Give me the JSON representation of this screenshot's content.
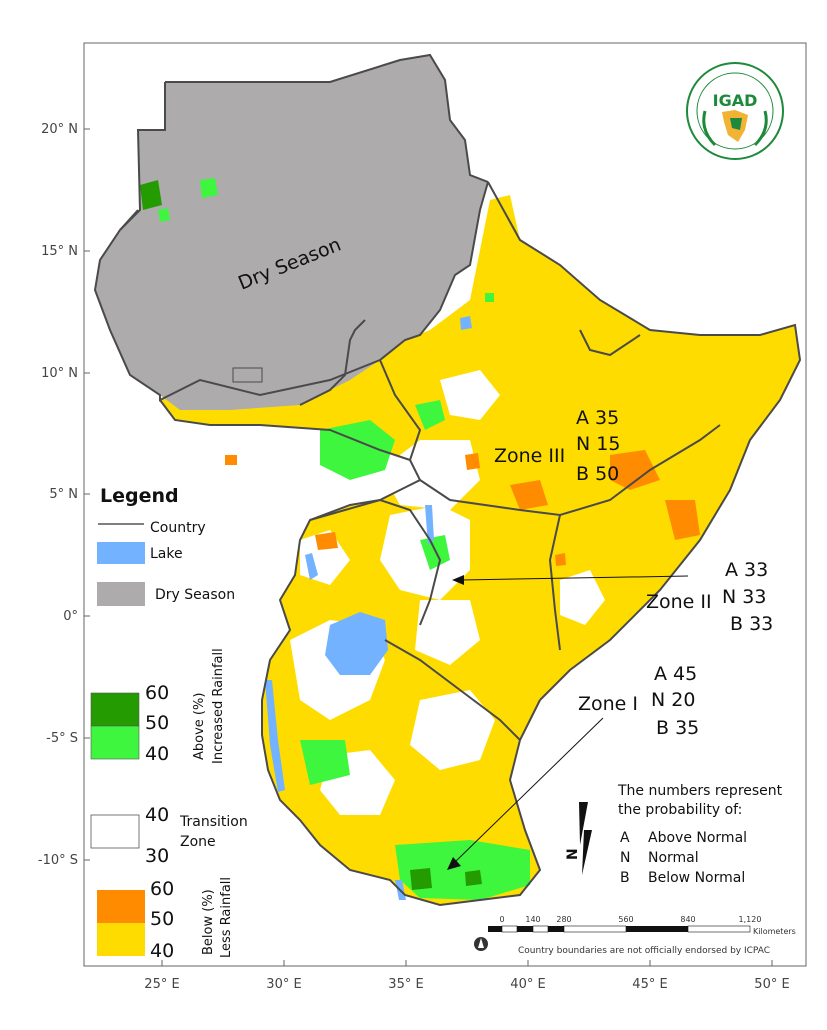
{
  "axes": {
    "lat_labels": [
      "20° N",
      "15° N",
      "10° N",
      "5° N",
      "0°",
      "-5° S",
      "-10° S"
    ],
    "lon_labels": [
      "25° E",
      "30° E",
      "35° E",
      "40° E",
      "45° E",
      "50° E"
    ]
  },
  "colors": {
    "dry_season": "#aeabad",
    "lake": "#73b2ff",
    "above_60": "#249b00",
    "above_40": "#3ff63f",
    "below_60": "#ff8b00",
    "below_40": "#ffdc00",
    "transition": "#ffffff",
    "border": "#4a4a4a"
  },
  "map_labels": {
    "dry_season": "Dry Season"
  },
  "zones": [
    {
      "name": "Zone III",
      "A": "A 35",
      "N": "N 15",
      "B": "B 50"
    },
    {
      "name": "Zone II",
      "A": "A 33",
      "N": "N 33",
      "B": "B 33"
    },
    {
      "name": "Zone I",
      "A": "A 45",
      "N": "N 20",
      "B": "B 35"
    }
  ],
  "legend": {
    "title": "Legend",
    "country": "Country",
    "lake": "Lake",
    "dry_season": "Dry Season",
    "above_label_1": "Above (%)",
    "above_label_2": "Increased Rainfall",
    "above_values": [
      "60",
      "50",
      "40"
    ],
    "transition_label_1": "Transition",
    "transition_label_2": "Zone",
    "transition_values": [
      "40",
      "30"
    ],
    "below_label_1": "Below (%)",
    "below_label_2": "Less Rainfall",
    "below_values": [
      "60",
      "50",
      "40"
    ]
  },
  "notes": {
    "line1": "The numbers represent",
    "line2": "the probability of:",
    "items": [
      {
        "key": "A",
        "text": "Above Normal"
      },
      {
        "key": "N",
        "text": "Normal"
      },
      {
        "key": "B",
        "text": "Below Normal"
      }
    ]
  },
  "scale_bar": {
    "ticks": [
      "0",
      "140",
      "280",
      "560",
      "840",
      "1,120"
    ],
    "unit": "Kilometers"
  },
  "north_arrow": "N",
  "credit": "Country boundaries are not officially endorsed by ICPAC",
  "logo": {
    "text": "IGAD"
  }
}
